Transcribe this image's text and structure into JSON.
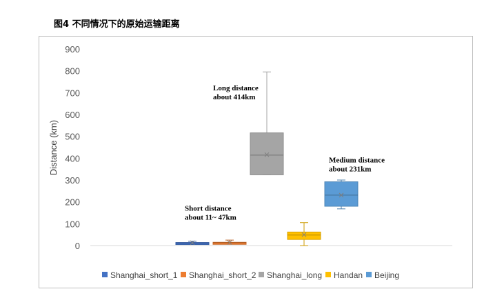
{
  "figure_title": "图4 不同情况下的原始运输距离",
  "chart_data": {
    "type": "box",
    "ylabel": "Distance (km)",
    "ylim": [
      0,
      900
    ],
    "yticks": [
      0,
      100,
      200,
      300,
      400,
      500,
      600,
      700,
      800,
      900
    ],
    "grid": false,
    "legend_position": "bottom",
    "series": [
      {
        "name": "Shanghai_short_1",
        "color": "#4472c4",
        "min": 8,
        "q1": 11,
        "median": 12,
        "q3": 14,
        "max": 20,
        "mean": 13
      },
      {
        "name": "Shanghai_short_2",
        "color": "#ed7d31",
        "min": 8,
        "q1": 10,
        "median": 13,
        "q3": 15,
        "max": 25,
        "mean": 14
      },
      {
        "name": "Shanghai_long",
        "color": "#a5a5a5",
        "min": 324,
        "q1": 324,
        "median": 414,
        "q3": 516,
        "max": 795,
        "mean": 416
      },
      {
        "name": "Handan",
        "color": "#ffc000",
        "min": 0,
        "q1": 28,
        "median": 48,
        "q3": 62,
        "max": 105,
        "mean": 50
      },
      {
        "name": "Beijing",
        "color": "#5b9bd5",
        "min": 168,
        "q1": 180,
        "median": 231,
        "q3": 292,
        "max": 300,
        "mean": 231
      }
    ],
    "annotations": [
      {
        "lines": [
          "Long distance",
          "about 414km"
        ],
        "x_series": 2,
        "y": 710
      },
      {
        "lines": [
          "Medium distance",
          "about 231km"
        ],
        "x_series": 4,
        "y": 380
      },
      {
        "lines": [
          "Short distance",
          "about 11~ 47km"
        ],
        "x_series": 0.5,
        "y": 160
      }
    ]
  }
}
